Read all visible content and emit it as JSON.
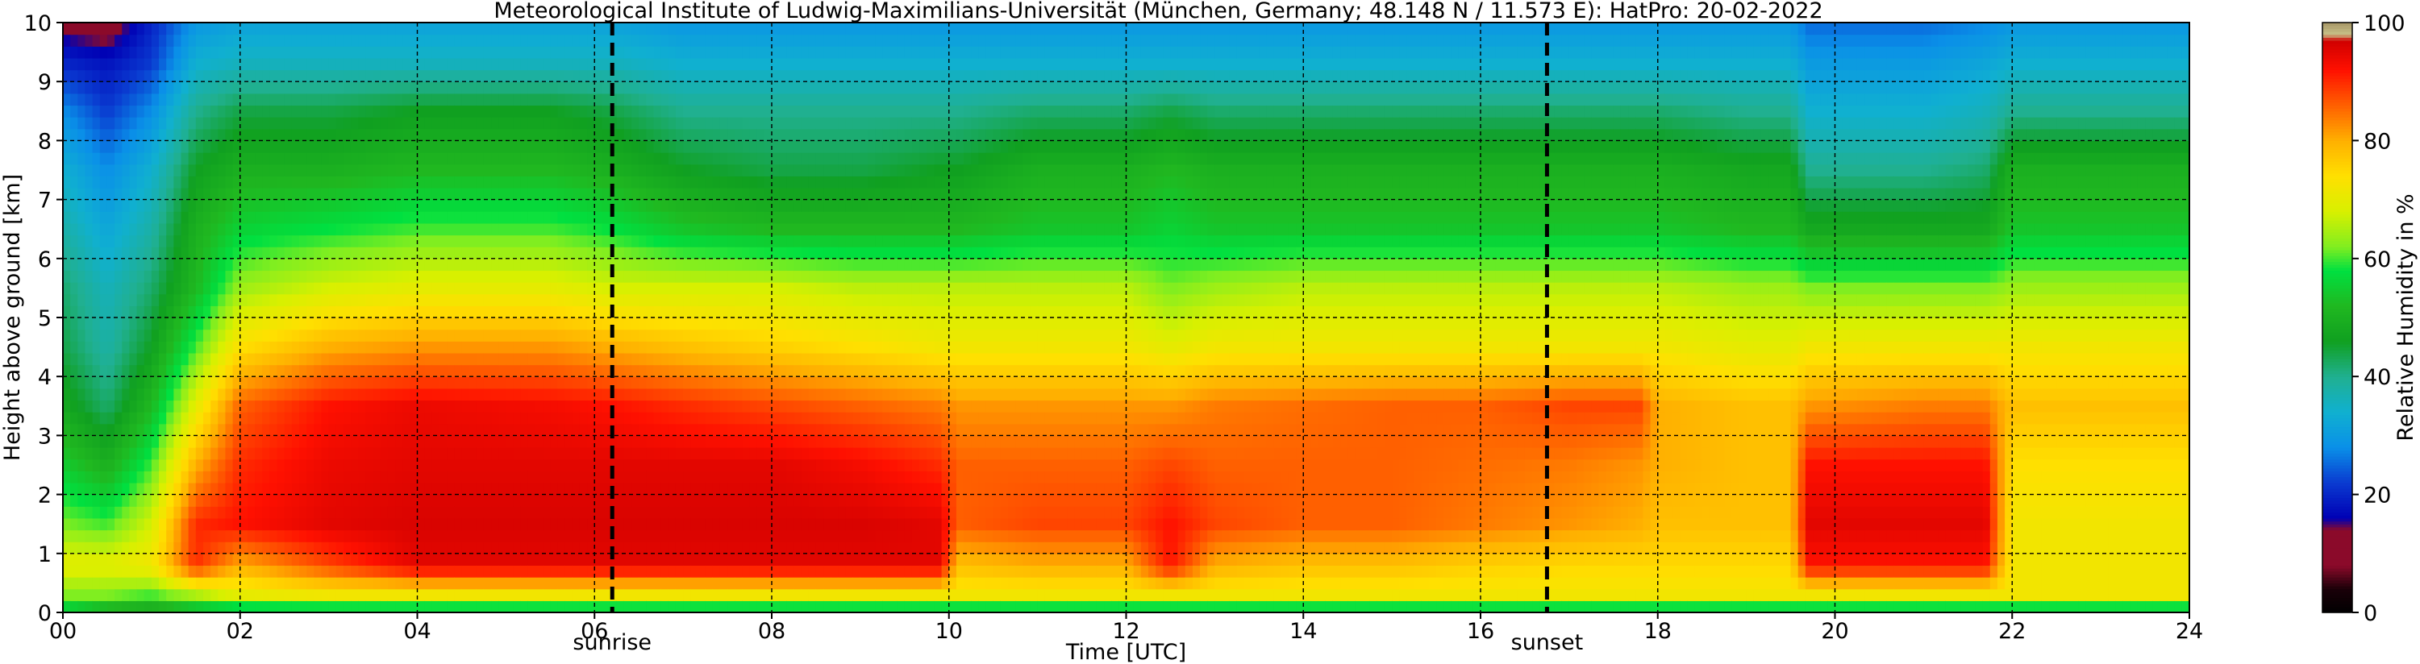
{
  "chart_data": {
    "type": "heatmap",
    "title": "Meteorological Institute of Ludwig-Maximilians-Universität (München, Germany; 48.148 N / 11.573 E):    HatPro: 20-02-2022",
    "xlabel": "Time [UTC]",
    "ylabel": "Height above ground [km]",
    "xlim": [
      0,
      24
    ],
    "ylim": [
      0,
      10
    ],
    "xticks": [
      "00",
      "02",
      "04",
      "06",
      "08",
      "10",
      "12",
      "14",
      "16",
      "18",
      "20",
      "22",
      "24"
    ],
    "xtick_values": [
      0,
      2,
      4,
      6,
      8,
      10,
      12,
      14,
      16,
      18,
      20,
      22,
      24
    ],
    "yticks": [
      "0",
      "1",
      "2",
      "3",
      "4",
      "5",
      "6",
      "7",
      "8",
      "9",
      "10"
    ],
    "ytick_values": [
      0,
      1,
      2,
      3,
      4,
      5,
      6,
      7,
      8,
      9,
      10
    ],
    "grid": true,
    "events": [
      {
        "label": "sunrise",
        "time": 6.2
      },
      {
        "label": "sunset",
        "time": 16.75
      }
    ],
    "colorbar": {
      "label": "Relative Humidity in %",
      "ticks": [
        "0",
        "20",
        "40",
        "60",
        "80",
        "100"
      ],
      "tick_values": [
        0,
        20,
        40,
        60,
        80,
        100
      ],
      "range": [
        0,
        100
      ]
    },
    "time_nodes": [
      0,
      0.5,
      1.0,
      1.5,
      2.0,
      3.0,
      4.0,
      5.5,
      6.2,
      7.0,
      8.0,
      9.0,
      9.9,
      10.1,
      11.0,
      12.0,
      12.5,
      13.0,
      14.0,
      15.0,
      16.0,
      17.0,
      17.8,
      18.0,
      19.0,
      19.5,
      19.7,
      21.0,
      21.7,
      22.0,
      23.0,
      24.0
    ],
    "rh_layers": [
      {
        "height_km": 0.05,
        "rh": [
          55,
          50,
          48,
          52,
          55,
          55,
          55,
          55,
          55,
          55,
          55,
          55,
          55,
          55,
          55,
          55,
          55,
          55,
          55,
          55,
          55,
          55,
          55,
          55,
          55,
          55,
          55,
          55,
          55,
          55,
          55,
          55
        ]
      },
      {
        "height_km": 0.3,
        "rh": [
          62,
          62,
          60,
          65,
          70,
          72,
          72,
          72,
          72,
          72,
          72,
          72,
          72,
          72,
          72,
          72,
          72,
          72,
          72,
          72,
          72,
          72,
          72,
          72,
          72,
          72,
          72,
          72,
          72,
          72,
          72,
          72
        ]
      },
      {
        "height_km": 0.8,
        "rh": [
          70,
          70,
          72,
          90,
          80,
          88,
          95,
          95,
          95,
          95,
          95,
          95,
          95,
          78,
          80,
          80,
          92,
          80,
          78,
          78,
          76,
          75,
          75,
          75,
          75,
          75,
          92,
          92,
          92,
          72,
          72,
          72
        ]
      },
      {
        "height_km": 1.5,
        "rh": [
          62,
          60,
          68,
          90,
          92,
          95,
          96,
          96,
          96,
          96,
          96,
          96,
          95,
          86,
          88,
          88,
          92,
          88,
          86,
          86,
          84,
          82,
          80,
          78,
          78,
          78,
          95,
          95,
          95,
          72,
          72,
          72
        ]
      },
      {
        "height_km": 2.5,
        "rh": [
          55,
          50,
          60,
          80,
          90,
          94,
          95,
          95,
          95,
          95,
          95,
          93,
          90,
          86,
          86,
          86,
          88,
          86,
          86,
          86,
          85,
          84,
          82,
          80,
          78,
          78,
          92,
          92,
          92,
          74,
          74,
          74
        ]
      },
      {
        "height_km": 3.5,
        "rh": [
          48,
          42,
          52,
          70,
          86,
          92,
          94,
          93,
          92,
          90,
          88,
          86,
          84,
          82,
          82,
          82,
          82,
          84,
          85,
          86,
          86,
          88,
          88,
          80,
          78,
          78,
          82,
          84,
          84,
          78,
          78,
          78
        ]
      },
      {
        "height_km": 4.5,
        "rh": [
          44,
          38,
          46,
          60,
          74,
          80,
          82,
          82,
          80,
          78,
          76,
          74,
          72,
          72,
          72,
          72,
          70,
          72,
          72,
          72,
          72,
          72,
          72,
          72,
          70,
          70,
          72,
          72,
          72,
          72,
          72,
          72
        ]
      },
      {
        "height_km": 5.5,
        "rh": [
          42,
          36,
          42,
          52,
          64,
          68,
          70,
          70,
          68,
          68,
          68,
          66,
          66,
          66,
          66,
          66,
          62,
          64,
          66,
          66,
          66,
          66,
          66,
          66,
          64,
          64,
          62,
          62,
          62,
          64,
          64,
          64
        ]
      },
      {
        "height_km": 6.5,
        "rh": [
          38,
          32,
          38,
          50,
          56,
          58,
          60,
          60,
          58,
          54,
          52,
          52,
          52,
          52,
          54,
          54,
          56,
          54,
          54,
          54,
          54,
          54,
          54,
          54,
          52,
          52,
          48,
          48,
          48,
          54,
          54,
          54
        ]
      },
      {
        "height_km": 7.5,
        "rh": [
          34,
          28,
          34,
          46,
          50,
          50,
          52,
          52,
          50,
          46,
          44,
          44,
          46,
          46,
          50,
          50,
          52,
          50,
          50,
          50,
          50,
          50,
          50,
          50,
          48,
          48,
          40,
          40,
          42,
          50,
          50,
          50
        ]
      },
      {
        "height_km": 8.5,
        "rh": [
          28,
          22,
          28,
          40,
          44,
          44,
          46,
          46,
          44,
          40,
          40,
          40,
          40,
          40,
          42,
          42,
          44,
          42,
          42,
          42,
          42,
          42,
          42,
          42,
          40,
          40,
          34,
          34,
          36,
          40,
          40,
          40
        ]
      },
      {
        "height_km": 9.3,
        "rh": [
          20,
          18,
          22,
          34,
          36,
          36,
          36,
          36,
          36,
          34,
          34,
          34,
          34,
          34,
          34,
          34,
          34,
          34,
          34,
          34,
          34,
          34,
          34,
          34,
          34,
          34,
          30,
          30,
          32,
          34,
          34,
          34
        ]
      },
      {
        "height_km": 9.9,
        "rh": [
          14,
          12,
          20,
          30,
          32,
          32,
          32,
          32,
          32,
          30,
          30,
          30,
          30,
          30,
          30,
          30,
          30,
          30,
          30,
          30,
          30,
          30,
          30,
          30,
          30,
          30,
          26,
          26,
          28,
          30,
          30,
          30
        ]
      }
    ],
    "colormap": [
      {
        "rh": 0,
        "color": "#000000"
      },
      {
        "rh": 4,
        "color": "#1a0008"
      },
      {
        "rh": 8,
        "color": "#8b0a2a"
      },
      {
        "rh": 14,
        "color": "#8b0a2a"
      },
      {
        "rh": 16,
        "color": "#0000b4"
      },
      {
        "rh": 22,
        "color": "#0a3ad0"
      },
      {
        "rh": 28,
        "color": "#0a90e8"
      },
      {
        "rh": 34,
        "color": "#10b0d0"
      },
      {
        "rh": 40,
        "color": "#20b090"
      },
      {
        "rh": 46,
        "color": "#10a020"
      },
      {
        "rh": 52,
        "color": "#20b820"
      },
      {
        "rh": 58,
        "color": "#00e040"
      },
      {
        "rh": 62,
        "color": "#80ee20"
      },
      {
        "rh": 68,
        "color": "#d8f000"
      },
      {
        "rh": 74,
        "color": "#ffe000"
      },
      {
        "rh": 80,
        "color": "#ffb000"
      },
      {
        "rh": 86,
        "color": "#ff6000"
      },
      {
        "rh": 92,
        "color": "#ff1000"
      },
      {
        "rh": 97,
        "color": "#d00000"
      },
      {
        "rh": 98,
        "color": "#c8c088"
      },
      {
        "rh": 100,
        "color": "#a89868"
      }
    ]
  }
}
